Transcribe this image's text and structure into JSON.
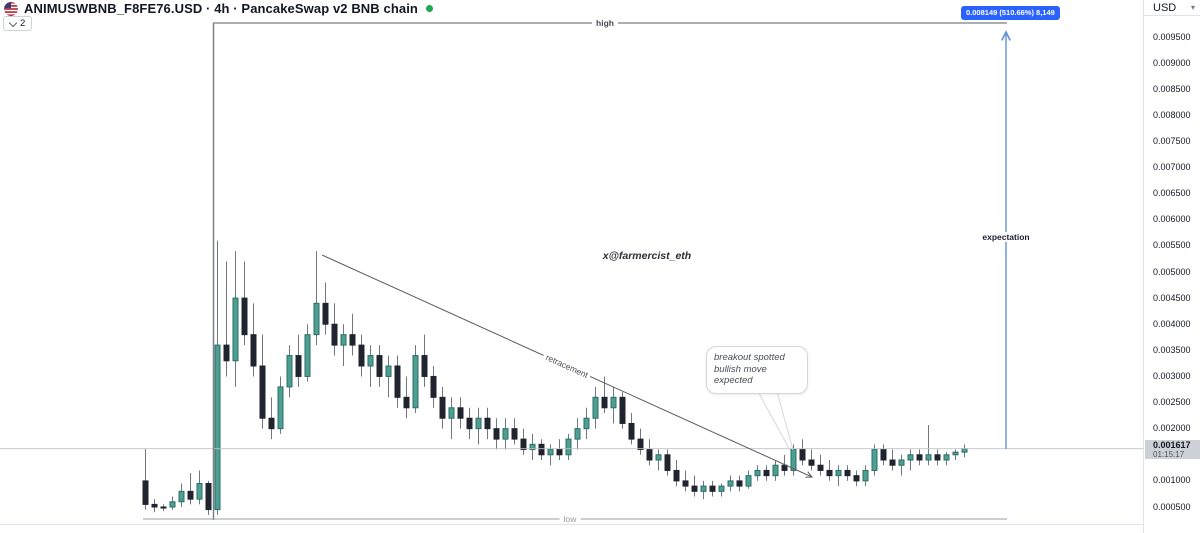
{
  "header": {
    "symbol_title": "ANIMUSWBNB_F8FE76.USD · 4h · PancakeSwap v2 BNB chain",
    "interval": "4h",
    "candles_button_label": "2",
    "change_badge": "0.008149 (510.66%) 8,149",
    "currency": "USD",
    "currency_caret": "▾"
  },
  "price_scale": {
    "current_price": "0.001617",
    "countdown": "01:15:17",
    "ticks": [
      {
        "label": "0.009500",
        "value": 0.0095
      },
      {
        "label": "0.009000",
        "value": 0.009
      },
      {
        "label": "0.008500",
        "value": 0.0085
      },
      {
        "label": "0.008000",
        "value": 0.008
      },
      {
        "label": "0.007500",
        "value": 0.0075
      },
      {
        "label": "0.007000",
        "value": 0.007
      },
      {
        "label": "0.006500",
        "value": 0.0065
      },
      {
        "label": "0.006000",
        "value": 0.006
      },
      {
        "label": "0.005500",
        "value": 0.0055
      },
      {
        "label": "0.005000",
        "value": 0.005
      },
      {
        "label": "0.004500",
        "value": 0.0045
      },
      {
        "label": "0.004000",
        "value": 0.004
      },
      {
        "label": "0.003500",
        "value": 0.0035
      },
      {
        "label": "0.003000",
        "value": 0.003
      },
      {
        "label": "0.002500",
        "value": 0.0025
      },
      {
        "label": "0.002000",
        "value": 0.002
      },
      {
        "label": "0.001000",
        "value": 0.001
      },
      {
        "label": "0.000500",
        "value": 0.0005
      }
    ]
  },
  "annotations": {
    "high_label": "high",
    "low_label": "low",
    "retracement_label": "retracement",
    "expectation_label": "expectation",
    "watermark": "x@farmercist_eth",
    "callout_lines": [
      "breakout spotted",
      "bullish move",
      "expected"
    ]
  },
  "colors": {
    "up_fill": "#4d9e93",
    "up_stroke": "#2a6f64",
    "down_fill": "#20242f",
    "down_stroke": "#20242f",
    "wick": "#73767f",
    "badge_bg": "#2962ff",
    "arrow_blue": "#6292d8",
    "line_dark": "#5b5e66",
    "line_light": "#9b9ea6",
    "price_tag_bg": "#cdd0d6",
    "status_green": "#1fa84f"
  },
  "chart_data": {
    "type": "candlestick",
    "symbol": "ANIMUSWBNB_F8FE76.USD",
    "timeframe": "4h",
    "exchange": "PancakeSwap v2 BNB chain",
    "y_axis_range": [
      0.00025,
      0.00985
    ],
    "x_axis_labels_visible": false,
    "grid": "off",
    "current_price": 0.001617,
    "candles_ohlc": [
      [
        0.001,
        0.00162,
        0.00045,
        0.00055
      ],
      [
        0.00055,
        0.00065,
        0.0004,
        0.0005
      ],
      [
        0.0005,
        0.00055,
        0.00042,
        0.00048
      ],
      [
        0.0005,
        0.0007,
        0.00045,
        0.0006
      ],
      [
        0.0006,
        0.00095,
        0.0005,
        0.0008
      ],
      [
        0.0008,
        0.00115,
        0.00055,
        0.00065
      ],
      [
        0.00065,
        0.0012,
        0.00055,
        0.00095
      ],
      [
        0.00095,
        0.001,
        0.00035,
        0.00045
      ],
      [
        0.00045,
        0.0056,
        0.00035,
        0.0036
      ],
      [
        0.0036,
        0.0052,
        0.003,
        0.0033
      ],
      [
        0.0033,
        0.0054,
        0.0028,
        0.0045
      ],
      [
        0.0045,
        0.0052,
        0.0036,
        0.0038
      ],
      [
        0.0038,
        0.0044,
        0.003,
        0.0032
      ],
      [
        0.0032,
        0.0038,
        0.002,
        0.0022
      ],
      [
        0.0022,
        0.0026,
        0.0018,
        0.002
      ],
      [
        0.002,
        0.003,
        0.0019,
        0.0028
      ],
      [
        0.0028,
        0.0036,
        0.0026,
        0.0034
      ],
      [
        0.0034,
        0.0038,
        0.0028,
        0.003
      ],
      [
        0.003,
        0.004,
        0.0029,
        0.0038
      ],
      [
        0.0038,
        0.0054,
        0.0036,
        0.0044
      ],
      [
        0.0044,
        0.0048,
        0.0038,
        0.004
      ],
      [
        0.004,
        0.0044,
        0.0034,
        0.0036
      ],
      [
        0.0036,
        0.004,
        0.0032,
        0.0038
      ],
      [
        0.0038,
        0.0042,
        0.0034,
        0.0036
      ],
      [
        0.0036,
        0.0038,
        0.003,
        0.0032
      ],
      [
        0.0032,
        0.0036,
        0.0028,
        0.0034
      ],
      [
        0.0034,
        0.0036,
        0.0028,
        0.003
      ],
      [
        0.003,
        0.0034,
        0.0026,
        0.0032
      ],
      [
        0.0032,
        0.0034,
        0.0024,
        0.0026
      ],
      [
        0.0026,
        0.003,
        0.0022,
        0.0024
      ],
      [
        0.0024,
        0.0036,
        0.0023,
        0.0034
      ],
      [
        0.0034,
        0.0038,
        0.0028,
        0.003
      ],
      [
        0.003,
        0.0032,
        0.0024,
        0.0026
      ],
      [
        0.0026,
        0.0028,
        0.002,
        0.0022
      ],
      [
        0.0022,
        0.0026,
        0.0018,
        0.0024
      ],
      [
        0.0024,
        0.0026,
        0.002,
        0.0022
      ],
      [
        0.0022,
        0.0024,
        0.0018,
        0.002
      ],
      [
        0.002,
        0.0024,
        0.0017,
        0.0022
      ],
      [
        0.0022,
        0.0024,
        0.0018,
        0.002
      ],
      [
        0.002,
        0.0022,
        0.0016,
        0.0018
      ],
      [
        0.0018,
        0.0022,
        0.0016,
        0.002
      ],
      [
        0.002,
        0.0022,
        0.0017,
        0.0018
      ],
      [
        0.0018,
        0.002,
        0.0015,
        0.0016
      ],
      [
        0.0016,
        0.0019,
        0.0014,
        0.0017
      ],
      [
        0.0017,
        0.0018,
        0.0014,
        0.0015
      ],
      [
        0.0015,
        0.0017,
        0.0013,
        0.0016
      ],
      [
        0.0016,
        0.0018,
        0.0014,
        0.0015
      ],
      [
        0.0015,
        0.0019,
        0.0014,
        0.0018
      ],
      [
        0.0018,
        0.0022,
        0.0016,
        0.002
      ],
      [
        0.002,
        0.0024,
        0.0018,
        0.0022
      ],
      [
        0.0022,
        0.0028,
        0.002,
        0.0026
      ],
      [
        0.0026,
        0.003,
        0.0023,
        0.0024
      ],
      [
        0.0024,
        0.0028,
        0.0021,
        0.0026
      ],
      [
        0.0026,
        0.0027,
        0.002,
        0.0021
      ],
      [
        0.0021,
        0.0023,
        0.0017,
        0.0018
      ],
      [
        0.0018,
        0.002,
        0.0015,
        0.0016
      ],
      [
        0.0016,
        0.0018,
        0.0013,
        0.0014
      ],
      [
        0.0014,
        0.0016,
        0.0012,
        0.0015
      ],
      [
        0.0015,
        0.0016,
        0.0011,
        0.0012
      ],
      [
        0.0012,
        0.0014,
        0.0009,
        0.001
      ],
      [
        0.001,
        0.0012,
        0.0008,
        0.0009
      ],
      [
        0.0009,
        0.0011,
        0.0007,
        0.0008
      ],
      [
        0.0008,
        0.001,
        0.00065,
        0.0009
      ],
      [
        0.0009,
        0.001,
        0.0007,
        0.0008
      ],
      [
        0.0008,
        0.00095,
        0.0007,
        0.0009
      ],
      [
        0.0009,
        0.0011,
        0.0008,
        0.001
      ],
      [
        0.001,
        0.0011,
        0.0008,
        0.0009
      ],
      [
        0.0009,
        0.0012,
        0.00085,
        0.0011
      ],
      [
        0.0011,
        0.0013,
        0.001,
        0.0012
      ],
      [
        0.0012,
        0.0013,
        0.001,
        0.0011
      ],
      [
        0.0011,
        0.0014,
        0.001,
        0.0013
      ],
      [
        0.0013,
        0.0015,
        0.0011,
        0.0012
      ],
      [
        0.0012,
        0.0017,
        0.0011,
        0.0016
      ],
      [
        0.0016,
        0.0018,
        0.0013,
        0.0014
      ],
      [
        0.0014,
        0.0016,
        0.0012,
        0.0013
      ],
      [
        0.0013,
        0.0015,
        0.0011,
        0.0012
      ],
      [
        0.0012,
        0.0014,
        0.001,
        0.0011
      ],
      [
        0.0011,
        0.0013,
        0.0009,
        0.0012
      ],
      [
        0.0012,
        0.0013,
        0.001,
        0.0011
      ],
      [
        0.0011,
        0.0012,
        0.0009,
        0.001
      ],
      [
        0.001,
        0.0013,
        0.0009,
        0.0012
      ],
      [
        0.0012,
        0.0017,
        0.0011,
        0.0016
      ],
      [
        0.0016,
        0.0017,
        0.0013,
        0.0014
      ],
      [
        0.0014,
        0.0016,
        0.0012,
        0.0013
      ],
      [
        0.0013,
        0.0015,
        0.0011,
        0.0014
      ],
      [
        0.0014,
        0.0016,
        0.0012,
        0.0015
      ],
      [
        0.0015,
        0.0016,
        0.0013,
        0.0014
      ],
      [
        0.0014,
        0.00207,
        0.0013,
        0.0015
      ],
      [
        0.0015,
        0.0016,
        0.0013,
        0.0014
      ],
      [
        0.0014,
        0.00155,
        0.0013,
        0.0015
      ],
      [
        0.0015,
        0.0016,
        0.0014,
        0.00155
      ],
      [
        0.00155,
        0.0017,
        0.00145,
        0.001617
      ]
    ]
  }
}
